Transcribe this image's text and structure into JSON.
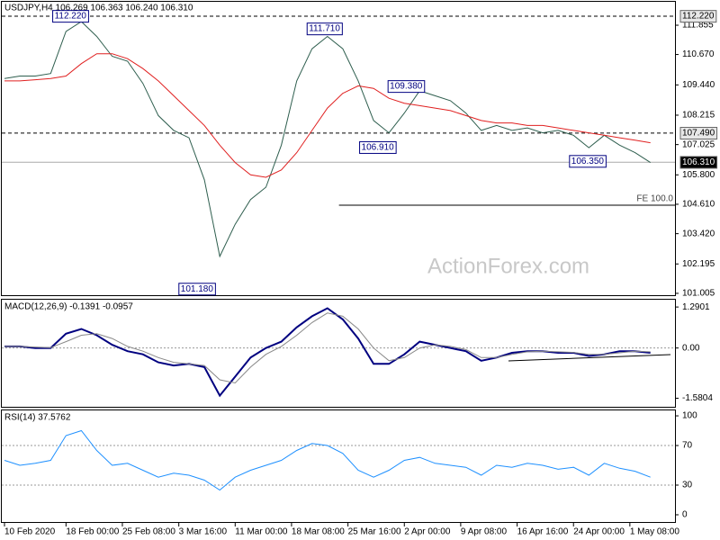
{
  "watermark": "ActionForex.com",
  "chart_data": [
    {
      "type": "line",
      "title": "USDJPY,H4  106.269 106.363 106.240 106.310",
      "x": [
        0,
        2,
        4,
        6,
        8,
        10,
        12,
        14,
        16,
        18,
        20,
        22,
        24,
        26,
        28,
        30,
        32,
        34,
        36,
        38,
        40,
        42,
        44,
        46,
        48,
        50,
        52,
        54,
        56,
        58,
        60,
        62,
        64,
        66,
        68,
        70,
        72,
        74,
        76,
        78,
        80,
        82,
        84
      ],
      "xlim": [
        -0.35,
        87.2
      ],
      "ylim": [
        100.93,
        112.73
      ],
      "yticks": [
        111.855,
        {
          "value": 110.67,
          "label": "110.670"
        },
        {
          "value": 109.44,
          "label": "109.440"
        },
        108.215,
        107.025,
        {
          "value": 105.8,
          "label": "105.800"
        },
        {
          "value": 104.61,
          "label": "104.610"
        },
        {
          "value": 103.42,
          "label": "103.420"
        },
        102.195,
        101.005
      ],
      "series": [
        {
          "color": "#2e5e4e",
          "width": 1,
          "values": [
            109.7,
            109.8,
            109.8,
            109.9,
            111.6,
            112.0,
            111.4,
            110.6,
            110.4,
            109.5,
            108.2,
            107.6,
            107.3,
            105.6,
            102.5,
            103.8,
            104.8,
            105.3,
            107.0,
            109.6,
            110.9,
            111.4,
            110.9,
            109.6,
            108.0,
            107.5,
            108.3,
            109.2,
            109.0,
            108.8,
            108.3,
            107.6,
            107.8,
            107.6,
            107.7,
            107.5,
            107.6,
            107.4,
            106.9,
            107.4,
            107.0,
            106.7,
            106.3
          ]
        },
        {
          "color": "#e02020",
          "width": 1,
          "values": [
            109.6,
            109.6,
            109.65,
            109.7,
            109.8,
            110.3,
            110.7,
            110.7,
            110.5,
            110.1,
            109.6,
            109.0,
            108.4,
            107.8,
            107.0,
            106.3,
            105.8,
            105.7,
            106.0,
            106.7,
            107.6,
            108.5,
            109.1,
            109.4,
            109.3,
            108.9,
            108.7,
            108.6,
            108.5,
            108.4,
            108.2,
            108.0,
            107.9,
            107.9,
            107.8,
            107.8,
            107.7,
            107.6,
            107.5,
            107.4,
            107.3,
            107.2,
            107.1
          ]
        }
      ],
      "levels": [
        {
          "value": 112.22,
          "label": "112.220",
          "style": "dashed"
        },
        {
          "value": 107.49,
          "label": "107.490",
          "style": "dashed"
        },
        {
          "value": 106.31,
          "label": "106.310",
          "style": "current"
        }
      ],
      "projection": {
        "value": 104.57,
        "label": "FE 100.0",
        "x_from": 43.5
      },
      "annotations": [
        {
          "x": 11,
          "value": 112.22,
          "label": "112.220"
        },
        {
          "x": 44,
          "value": 111.71,
          "label": "111.710"
        },
        {
          "x": 54.7,
          "value": 109.38,
          "label": "109.380"
        },
        {
          "x": 51,
          "value": 106.91,
          "label": "106.910"
        },
        {
          "x": 27.5,
          "value": 101.18,
          "label": "101.180"
        },
        {
          "x": 78.3,
          "value": 106.35,
          "label": "106.350"
        }
      ]
    },
    {
      "type": "line",
      "title": "MACD(12,26,9) -0.1391 -0.0957",
      "x": [
        0,
        2,
        4,
        6,
        8,
        10,
        12,
        14,
        16,
        18,
        20,
        22,
        24,
        26,
        28,
        30,
        32,
        34,
        36,
        38,
        40,
        42,
        44,
        46,
        48,
        50,
        52,
        54,
        56,
        58,
        60,
        62,
        64,
        66,
        68,
        70,
        72,
        74,
        76,
        78,
        80,
        82,
        84
      ],
      "xlim": [
        -0.35,
        87.2
      ],
      "ylim": [
        -1.85,
        1.52
      ],
      "yticks": [
        1.2901,
        {
          "value": 0,
          "label": "0.00"
        },
        -1.5804
      ],
      "levels": [
        {
          "value": 0,
          "style": "dotted"
        }
      ],
      "series": [
        {
          "color": "#000080",
          "width": 2,
          "values": [
            0.05,
            0.05,
            0.0,
            0.0,
            0.45,
            0.6,
            0.4,
            0.1,
            -0.1,
            -0.2,
            -0.45,
            -0.55,
            -0.5,
            -0.6,
            -1.5,
            -0.9,
            -0.3,
            0.0,
            0.2,
            0.65,
            1.0,
            1.25,
            0.9,
            0.3,
            -0.5,
            -0.5,
            -0.2,
            0.2,
            0.1,
            0.0,
            -0.1,
            -0.4,
            -0.3,
            -0.15,
            -0.1,
            -0.1,
            -0.15,
            -0.15,
            -0.25,
            -0.2,
            -0.1,
            -0.1,
            -0.15
          ]
        },
        {
          "color": "#888888",
          "width": 1,
          "values": [
            0.05,
            0.05,
            0.03,
            0.01,
            0.2,
            0.4,
            0.45,
            0.3,
            0.05,
            -0.1,
            -0.3,
            -0.45,
            -0.5,
            -0.55,
            -1.0,
            -1.1,
            -0.6,
            -0.2,
            0.05,
            0.4,
            0.8,
            1.1,
            1.0,
            0.6,
            0.0,
            -0.4,
            -0.3,
            0.0,
            0.1,
            0.05,
            -0.05,
            -0.3,
            -0.3,
            -0.2,
            -0.12,
            -0.1,
            -0.12,
            -0.14,
            -0.2,
            -0.2,
            -0.15,
            -0.1,
            -0.12
          ]
        }
      ]
    },
    {
      "type": "line",
      "title": "RSI(14) 37.5762",
      "x": [
        0,
        2,
        4,
        6,
        8,
        10,
        12,
        14,
        16,
        18,
        20,
        22,
        24,
        26,
        28,
        30,
        32,
        34,
        36,
        38,
        40,
        42,
        44,
        46,
        48,
        50,
        52,
        54,
        56,
        58,
        60,
        62,
        64,
        66,
        68,
        70,
        72,
        74,
        76,
        78,
        80,
        82,
        84
      ],
      "xlim": [
        -0.35,
        87.2
      ],
      "ylim": [
        -7.3,
        105.5
      ],
      "yticks": [
        100,
        70,
        30,
        0
      ],
      "levels": [
        {
          "value": 70,
          "style": "dotted"
        },
        {
          "value": 30,
          "style": "dotted"
        }
      ],
      "xticks": [
        {
          "value": 0,
          "label": "10 Feb 2020"
        },
        {
          "value": 8,
          "label": "18 Feb 00:00"
        },
        {
          "value": 15.33,
          "label": "25 Feb 08:00"
        },
        {
          "value": 22.67,
          "label": "3 Mar 16:00"
        },
        {
          "value": 30,
          "label": "11 Mar 00:00"
        },
        {
          "value": 37.33,
          "label": "18 Mar 08:00"
        },
        {
          "value": 44.67,
          "label": "25 Mar 16:00"
        },
        {
          "value": 52,
          "label": "2 Apr 00:00"
        },
        {
          "value": 59.33,
          "label": "9 Apr 08:00"
        },
        {
          "value": 66.67,
          "label": "16 Apr 16:00"
        },
        {
          "value": 74,
          "label": "24 Apr 00:00"
        },
        {
          "value": 81.33,
          "label": "1 May 08:00"
        }
      ],
      "series": [
        {
          "color": "#1e90ff",
          "width": 1,
          "values": [
            55,
            50,
            52,
            55,
            80,
            85,
            65,
            50,
            52,
            45,
            38,
            42,
            40,
            35,
            25,
            38,
            45,
            50,
            55,
            65,
            72,
            70,
            62,
            45,
            38,
            45,
            55,
            58,
            52,
            50,
            48,
            40,
            50,
            48,
            52,
            50,
            46,
            48,
            40,
            52,
            47,
            44,
            38
          ]
        }
      ]
    }
  ]
}
